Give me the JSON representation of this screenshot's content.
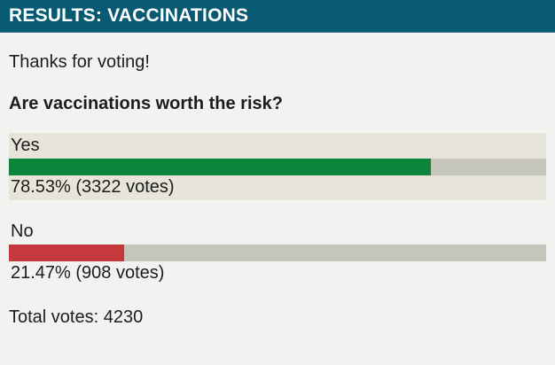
{
  "header": {
    "title": "RESULTS: VACCINATIONS"
  },
  "intro": {
    "thanks": "Thanks for voting!",
    "question": "Are vaccinations worth the risk?"
  },
  "poll": {
    "options": [
      {
        "label": "Yes",
        "percent": 78.53,
        "votes": 3322,
        "percent_label": "78.53% (3322 votes)",
        "color": "#0c843a",
        "highlighted": true
      },
      {
        "label": "No",
        "percent": 21.47,
        "votes": 908,
        "percent_label": "21.47% (908 votes)",
        "color": "#c5393d",
        "highlighted": false
      }
    ],
    "total_label": "Total votes: 4230",
    "total_votes": 4230
  },
  "colors": {
    "page_bg": "#f2f2f0",
    "text": "#1c1c1c",
    "header_bg": "#085a73",
    "header_text": "#ffffff",
    "highlight_bg": "#e7e5da",
    "track_bg": "#c6c5b9",
    "yes_bar": "#0c843a",
    "no_bar": "#c5393d"
  },
  "chart_data": {
    "type": "bar",
    "orientation": "horizontal",
    "title": "Are vaccinations worth the risk?",
    "categories": [
      "Yes",
      "No"
    ],
    "values": [
      78.53,
      21.47
    ],
    "value_unit": "%",
    "votes": [
      3322,
      908
    ],
    "total_votes": 4230,
    "xlim": [
      0,
      100
    ],
    "legend": "none",
    "grid": false
  }
}
